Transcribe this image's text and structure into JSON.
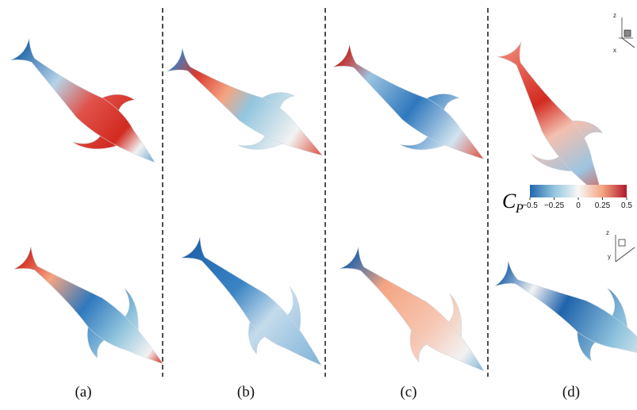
{
  "panels": [
    {
      "label": "(a)"
    },
    {
      "label": "(b)"
    },
    {
      "label": "(c)"
    },
    {
      "label": "(d)"
    }
  ],
  "colorbar": {
    "symbol": "C",
    "subscript": "P",
    "ticks": [
      {
        "value": -0.5,
        "label": "−0.5"
      },
      {
        "value": -0.25,
        "label": "−0.25"
      },
      0,
      0.25,
      0.5
    ]
  },
  "axes": [
    {
      "up": "z",
      "side": "x"
    },
    {
      "up": "z",
      "side": "y"
    }
  ]
}
